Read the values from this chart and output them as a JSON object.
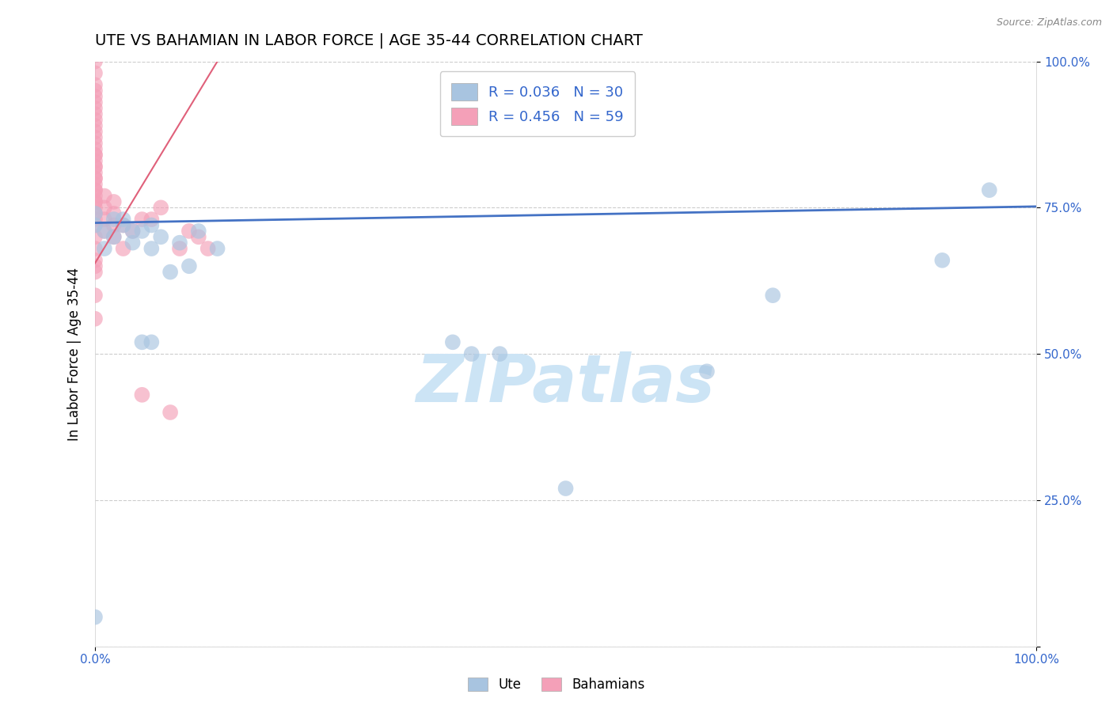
{
  "title": "UTE VS BAHAMIAN IN LABOR FORCE | AGE 35-44 CORRELATION CHART",
  "source_text": "Source: ZipAtlas.com",
  "ylabel": "In Labor Force | Age 35-44",
  "xlim": [
    0,
    1
  ],
  "ylim": [
    0,
    1
  ],
  "ytick_positions": [
    0.0,
    0.25,
    0.5,
    0.75,
    1.0
  ],
  "ytick_labels": [
    "",
    "25.0%",
    "50.0%",
    "75.0%",
    "100.0%"
  ],
  "xtick_positions": [
    0.0,
    1.0
  ],
  "xtick_labels": [
    "0.0%",
    "100.0%"
  ],
  "legend_r_ute": "R = 0.036",
  "legend_n_ute": "N = 30",
  "legend_r_bah": "R = 0.456",
  "legend_n_bah": "N = 59",
  "ute_color": "#a8c4e0",
  "bah_color": "#f4a0b8",
  "ute_line_color": "#4472C4",
  "bah_line_color": "#e0607a",
  "title_fontsize": 14,
  "watermark": "ZIPatlas",
  "watermark_color": "#cce4f5",
  "ute_line_x0": 0.0,
  "ute_line_y0": 0.724,
  "ute_line_x1": 1.0,
  "ute_line_y1": 0.752,
  "bah_line_x0": 0.0,
  "bah_line_y0": 0.655,
  "bah_line_x1": 0.13,
  "bah_line_y1": 1.0,
  "ute_scatter_x": [
    0.0,
    0.0,
    0.0,
    0.01,
    0.01,
    0.02,
    0.03,
    0.04,
    0.05,
    0.06,
    0.06,
    0.07,
    0.08,
    0.09,
    0.1,
    0.11,
    0.13,
    0.38,
    0.4,
    0.43,
    0.5,
    0.65,
    0.72,
    0.9,
    0.95,
    0.02,
    0.03,
    0.04,
    0.05,
    0.06
  ],
  "ute_scatter_y": [
    0.05,
    0.72,
    0.74,
    0.68,
    0.71,
    0.7,
    0.73,
    0.69,
    0.71,
    0.72,
    0.68,
    0.7,
    0.64,
    0.69,
    0.65,
    0.71,
    0.68,
    0.52,
    0.5,
    0.5,
    0.27,
    0.47,
    0.6,
    0.66,
    0.78,
    0.73,
    0.72,
    0.71,
    0.52,
    0.52
  ],
  "bah_scatter_x": [
    0.0,
    0.0,
    0.0,
    0.0,
    0.0,
    0.0,
    0.0,
    0.0,
    0.0,
    0.0,
    0.0,
    0.0,
    0.0,
    0.0,
    0.0,
    0.0,
    0.0,
    0.0,
    0.0,
    0.0,
    0.0,
    0.0,
    0.0,
    0.0,
    0.0,
    0.0,
    0.0,
    0.0,
    0.0,
    0.0,
    0.01,
    0.01,
    0.01,
    0.01,
    0.02,
    0.02,
    0.02,
    0.02,
    0.03,
    0.03,
    0.04,
    0.05,
    0.05,
    0.06,
    0.07,
    0.08,
    0.09,
    0.1,
    0.11,
    0.12,
    0.0,
    0.0,
    0.0,
    0.0,
    0.0,
    0.0,
    0.0,
    0.0,
    0.0
  ],
  "bah_scatter_y": [
    0.65,
    0.7,
    0.72,
    0.74,
    0.76,
    0.78,
    0.8,
    0.82,
    0.84,
    0.86,
    0.88,
    0.9,
    0.92,
    0.94,
    0.96,
    0.98,
    1.0,
    0.68,
    0.73,
    0.75,
    0.77,
    0.79,
    0.81,
    0.83,
    0.85,
    0.87,
    0.89,
    0.91,
    0.93,
    0.95,
    0.71,
    0.73,
    0.75,
    0.77,
    0.7,
    0.72,
    0.74,
    0.76,
    0.68,
    0.72,
    0.71,
    0.73,
    0.43,
    0.73,
    0.75,
    0.4,
    0.68,
    0.71,
    0.7,
    0.68,
    0.66,
    0.76,
    0.78,
    0.8,
    0.82,
    0.84,
    0.64,
    0.56,
    0.6
  ]
}
